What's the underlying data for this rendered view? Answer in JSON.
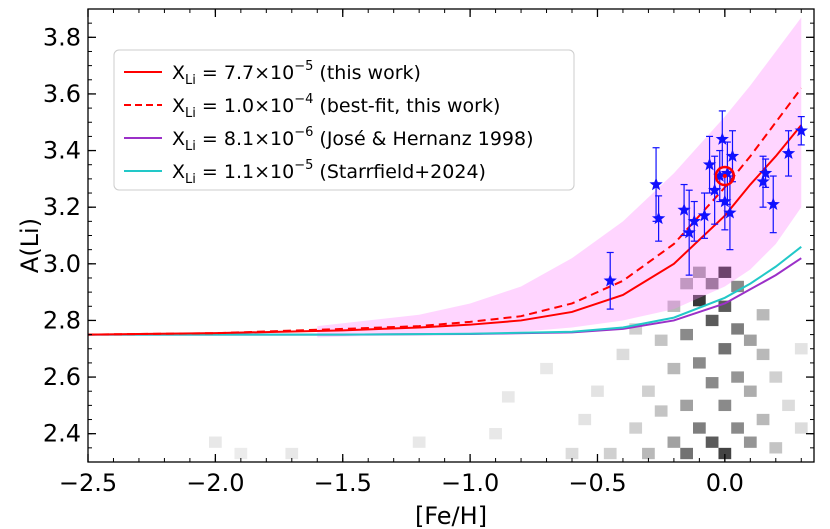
{
  "chart_data": {
    "type": "line",
    "xlabel": "[Fe/H]",
    "ylabel": "A(Li)",
    "xlim": [
      -2.5,
      0.35
    ],
    "ylim": [
      2.3,
      3.9
    ],
    "xticks": [
      -2.5,
      -2.0,
      -1.5,
      -1.0,
      -0.5,
      0.0
    ],
    "xtick_labels": [
      "−2.5",
      "−2.0",
      "−1.5",
      "−1.0",
      "−0.5",
      "0.0"
    ],
    "yticks": [
      2.4,
      2.6,
      2.8,
      3.0,
      3.2,
      3.4,
      3.6,
      3.8
    ],
    "ytick_labels": [
      "2.4",
      "2.6",
      "2.8",
      "3.0",
      "3.2",
      "3.4",
      "3.6",
      "3.8"
    ],
    "legend_position": "top-left",
    "series": [
      {
        "name": "this-work",
        "label_main": "X",
        "label_sub": "Li",
        "label_eq": " = 7.7×10",
        "label_exp": "−5",
        "label_rest": " (this work)",
        "color": "#ff0000",
        "dash": "solid",
        "x": [
          -2.5,
          -2.0,
          -1.5,
          -1.2,
          -1.0,
          -0.8,
          -0.6,
          -0.4,
          -0.2,
          0.0,
          0.1,
          0.2,
          0.3
        ],
        "y": [
          2.75,
          2.755,
          2.765,
          2.775,
          2.785,
          2.8,
          2.83,
          2.89,
          3.0,
          3.17,
          3.28,
          3.38,
          3.49
        ]
      },
      {
        "name": "best-fit",
        "label_main": "X",
        "label_sub": "Li",
        "label_eq": " = 1.0×10",
        "label_exp": "−4",
        "label_rest": " (best-fit, this work)",
        "color": "#ff0000",
        "dash": "dashed",
        "x": [
          -2.5,
          -2.0,
          -1.5,
          -1.2,
          -1.0,
          -0.8,
          -0.6,
          -0.4,
          -0.2,
          0.0,
          0.1,
          0.2,
          0.3
        ],
        "y": [
          2.75,
          2.755,
          2.77,
          2.78,
          2.795,
          2.815,
          2.86,
          2.94,
          3.07,
          3.27,
          3.38,
          3.5,
          3.62
        ]
      },
      {
        "name": "jose-hernanz",
        "label_main": "X",
        "label_sub": "Li",
        "label_eq": " = 8.1×10",
        "label_exp": "−6",
        "label_rest": " (José & Hernanz 1998)",
        "color": "#9b30c8",
        "dash": "solid",
        "x": [
          -2.5,
          -2.0,
          -1.5,
          -1.0,
          -0.6,
          -0.4,
          -0.2,
          0.0,
          0.1,
          0.2,
          0.3
        ],
        "y": [
          2.75,
          2.75,
          2.75,
          2.752,
          2.758,
          2.77,
          2.8,
          2.86,
          2.91,
          2.96,
          3.02
        ]
      },
      {
        "name": "starrfield",
        "label_main": "X",
        "label_sub": "Li",
        "label_eq": " = 1.1×10",
        "label_exp": "−5",
        "label_rest": " (Starrfield+2024)",
        "color": "#22c8c8",
        "dash": "solid",
        "x": [
          -2.5,
          -2.0,
          -1.5,
          -1.0,
          -0.6,
          -0.4,
          -0.2,
          0.0,
          0.1,
          0.2,
          0.3
        ],
        "y": [
          2.75,
          2.75,
          2.75,
          2.753,
          2.76,
          2.775,
          2.81,
          2.88,
          2.93,
          2.99,
          3.06
        ]
      }
    ],
    "band": {
      "color": "#ff88ff",
      "opacity": 0.35,
      "x": [
        -1.6,
        -1.2,
        -1.0,
        -0.8,
        -0.6,
        -0.4,
        -0.2,
        0.0,
        0.1,
        0.2,
        0.3
      ],
      "upper": [
        2.78,
        2.82,
        2.86,
        2.92,
        3.02,
        3.15,
        3.32,
        3.52,
        3.63,
        3.75,
        3.87
      ],
      "lower": [
        2.74,
        2.75,
        2.755,
        2.76,
        2.775,
        2.8,
        2.84,
        2.92,
        2.98,
        3.07,
        3.2
      ]
    },
    "stars": {
      "color": "#1010ff",
      "points": [
        {
          "x": -0.45,
          "y": 2.94,
          "err": 0.1
        },
        {
          "x": -0.27,
          "y": 3.28,
          "err": 0.13
        },
        {
          "x": -0.26,
          "y": 3.16,
          "err": 0.08
        },
        {
          "x": -0.16,
          "y": 3.19,
          "err": 0.09
        },
        {
          "x": -0.14,
          "y": 3.11,
          "err": 0.15
        },
        {
          "x": -0.12,
          "y": 3.15,
          "err": 0.07
        },
        {
          "x": -0.08,
          "y": 3.17,
          "err": 0.08
        },
        {
          "x": -0.06,
          "y": 3.35,
          "err": 0.1
        },
        {
          "x": -0.04,
          "y": 3.26,
          "err": 0.12
        },
        {
          "x": -0.02,
          "y": 3.31,
          "err": 0.09
        },
        {
          "x": -0.01,
          "y": 3.44,
          "err": 0.1
        },
        {
          "x": 0.0,
          "y": 3.22,
          "err": 0.1
        },
        {
          "x": 0.01,
          "y": 3.32,
          "err": 0.11
        },
        {
          "x": 0.02,
          "y": 3.18,
          "err": 0.13
        },
        {
          "x": 0.03,
          "y": 3.38,
          "err": 0.09
        },
        {
          "x": 0.15,
          "y": 3.29,
          "err": 0.09
        },
        {
          "x": 0.16,
          "y": 3.32,
          "err": 0.05
        },
        {
          "x": 0.19,
          "y": 3.21,
          "err": 0.1
        },
        {
          "x": 0.25,
          "y": 3.39,
          "err": 0.08
        },
        {
          "x": 0.3,
          "y": 3.47,
          "err": 0.05
        }
      ]
    },
    "sun": {
      "x": 0.0,
      "y": 3.31,
      "color": "#ff0000"
    },
    "background_histogram": {
      "color": "gray",
      "cells": [
        {
          "x": -2.0,
          "y": 2.37,
          "d": 0.1
        },
        {
          "x": -1.9,
          "y": 2.33,
          "d": 0.08
        },
        {
          "x": -1.7,
          "y": 2.33,
          "d": 0.1
        },
        {
          "x": -1.2,
          "y": 2.37,
          "d": 0.1
        },
        {
          "x": -0.9,
          "y": 2.4,
          "d": 0.1
        },
        {
          "x": -0.85,
          "y": 2.53,
          "d": 0.1
        },
        {
          "x": -0.7,
          "y": 2.63,
          "d": 0.1
        },
        {
          "x": -0.6,
          "y": 2.33,
          "d": 0.15
        },
        {
          "x": -0.55,
          "y": 2.45,
          "d": 0.12
        },
        {
          "x": -0.5,
          "y": 2.55,
          "d": 0.12
        },
        {
          "x": -0.45,
          "y": 2.33,
          "d": 0.2
        },
        {
          "x": -0.4,
          "y": 2.68,
          "d": 0.15
        },
        {
          "x": -0.35,
          "y": 2.42,
          "d": 0.2
        },
        {
          "x": -0.35,
          "y": 2.77,
          "d": 0.2
        },
        {
          "x": -0.3,
          "y": 2.55,
          "d": 0.2
        },
        {
          "x": -0.3,
          "y": 2.33,
          "d": 0.3
        },
        {
          "x": -0.25,
          "y": 2.73,
          "d": 0.25
        },
        {
          "x": -0.25,
          "y": 2.48,
          "d": 0.25
        },
        {
          "x": -0.2,
          "y": 2.63,
          "d": 0.3
        },
        {
          "x": -0.2,
          "y": 2.37,
          "d": 0.4
        },
        {
          "x": -0.2,
          "y": 2.85,
          "d": 0.3
        },
        {
          "x": -0.15,
          "y": 2.93,
          "d": 0.4
        },
        {
          "x": -0.15,
          "y": 2.5,
          "d": 0.4
        },
        {
          "x": -0.15,
          "y": 2.75,
          "d": 0.5
        },
        {
          "x": -0.15,
          "y": 2.33,
          "d": 0.6
        },
        {
          "x": -0.1,
          "y": 2.87,
          "d": 0.85
        },
        {
          "x": -0.1,
          "y": 2.65,
          "d": 0.5
        },
        {
          "x": -0.1,
          "y": 2.42,
          "d": 0.55
        },
        {
          "x": -0.1,
          "y": 2.97,
          "d": 0.45
        },
        {
          "x": -0.05,
          "y": 2.8,
          "d": 0.7
        },
        {
          "x": -0.05,
          "y": 2.58,
          "d": 0.5
        },
        {
          "x": -0.05,
          "y": 2.37,
          "d": 0.7
        },
        {
          "x": -0.05,
          "y": 2.93,
          "d": 0.6
        },
        {
          "x": 0.0,
          "y": 2.97,
          "d": 0.95
        },
        {
          "x": 0.0,
          "y": 2.7,
          "d": 0.6
        },
        {
          "x": 0.0,
          "y": 2.5,
          "d": 0.5
        },
        {
          "x": 0.0,
          "y": 2.33,
          "d": 0.8
        },
        {
          "x": 0.0,
          "y": 2.85,
          "d": 0.7
        },
        {
          "x": 0.05,
          "y": 2.77,
          "d": 0.55
        },
        {
          "x": 0.05,
          "y": 2.6,
          "d": 0.45
        },
        {
          "x": 0.05,
          "y": 2.42,
          "d": 0.5
        },
        {
          "x": 0.05,
          "y": 2.92,
          "d": 0.5
        },
        {
          "x": 0.1,
          "y": 2.73,
          "d": 0.4
        },
        {
          "x": 0.1,
          "y": 2.55,
          "d": 0.35
        },
        {
          "x": 0.1,
          "y": 2.37,
          "d": 0.45
        },
        {
          "x": 0.15,
          "y": 2.68,
          "d": 0.3
        },
        {
          "x": 0.15,
          "y": 2.45,
          "d": 0.3
        },
        {
          "x": 0.15,
          "y": 2.82,
          "d": 0.3
        },
        {
          "x": 0.2,
          "y": 2.6,
          "d": 0.2
        },
        {
          "x": 0.2,
          "y": 2.35,
          "d": 0.25
        },
        {
          "x": 0.25,
          "y": 2.5,
          "d": 0.15
        },
        {
          "x": 0.3,
          "y": 2.42,
          "d": 0.15
        },
        {
          "x": 0.3,
          "y": 2.7,
          "d": 0.12
        }
      ]
    }
  }
}
